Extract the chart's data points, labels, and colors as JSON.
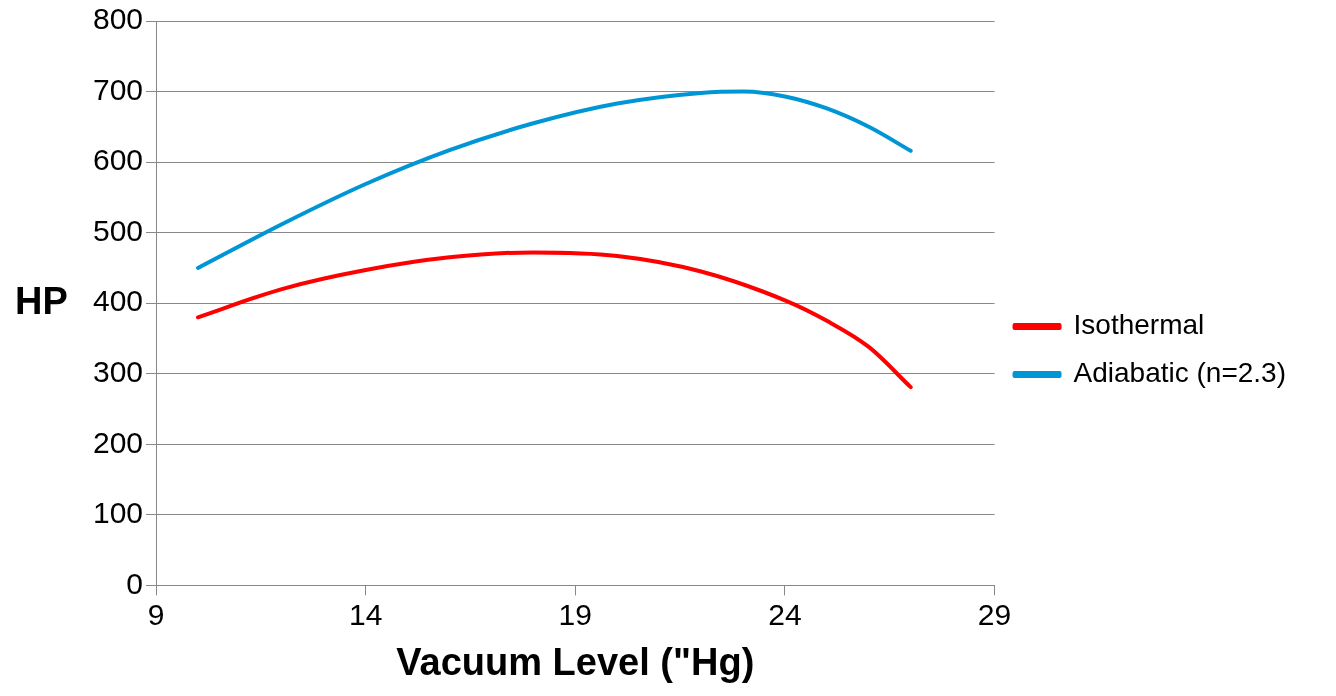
{
  "chart_data": {
    "type": "line",
    "xlabel": "Vacuum Level (\"Hg)",
    "ylabel": "HP",
    "xlim": [
      9,
      29
    ],
    "xticks": [
      9,
      14,
      19,
      24,
      29
    ],
    "ylim": [
      0,
      800
    ],
    "yticks": [
      0,
      100,
      200,
      300,
      400,
      500,
      600,
      700,
      800
    ],
    "grid": "y",
    "legend": "right",
    "marker": "none",
    "series": [
      {
        "name": "Isothermal",
        "color": "#ff0000",
        "x": [
          10,
          12,
          14,
          16,
          18,
          20,
          22,
          24,
          25,
          26,
          27
        ],
        "values": [
          380,
          420,
          447,
          465,
          472,
          467,
          445,
          404,
          375,
          338,
          281
        ]
      },
      {
        "name": "Adiabatic (n=2.3)",
        "color": "#0096d6",
        "x": [
          10,
          12,
          14,
          16,
          18,
          20,
          22,
          23,
          24,
          25,
          26,
          27
        ],
        "values": [
          450,
          512,
          569,
          617,
          655,
          683,
          698,
          700,
          693,
          676,
          650,
          616
        ]
      }
    ]
  }
}
